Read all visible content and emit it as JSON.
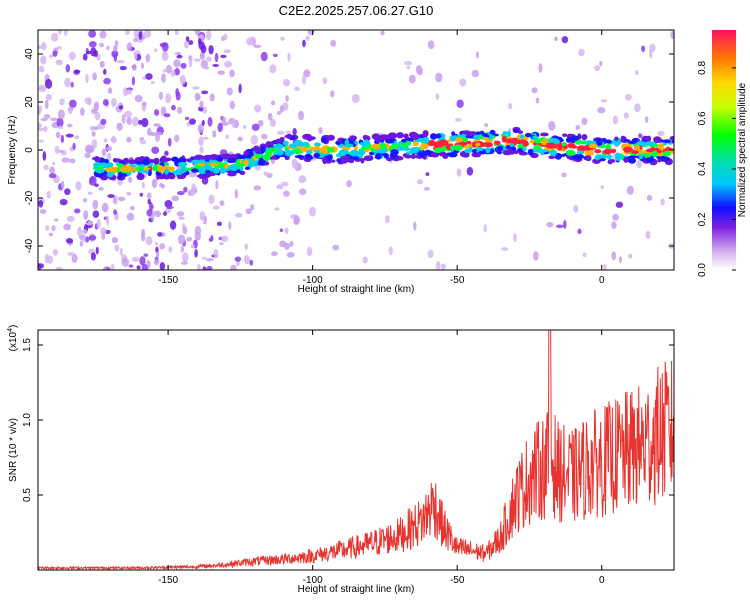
{
  "title": "C2E2.2025.257.06.27.G10",
  "chart_data": [
    {
      "type": "heatmap",
      "xlabel": "Height of straight line (km)",
      "ylabel": "Frequency (Hz)",
      "xlim": [
        -195,
        25
      ],
      "ylim": [
        -50,
        50
      ],
      "xticks": [
        -150,
        -100,
        -50,
        0
      ],
      "yticks": [
        -40,
        -20,
        0,
        20,
        40
      ],
      "grid": false,
      "ridge": {
        "description_x": [
          -190,
          -170,
          -140,
          -125,
          -110,
          -90,
          -60,
          -40,
          -30,
          -20,
          0,
          25
        ],
        "freq_hz": [
          -6,
          -8,
          -7,
          -6,
          1,
          0,
          2,
          3,
          4,
          2,
          0,
          0
        ]
      },
      "colorbar": {
        "label": "Normalized spectral amplitude",
        "range": [
          0.0,
          0.95
        ],
        "ticks": [
          "0.0",
          "0.2",
          "0.4",
          "0.6",
          "0.8"
        ]
      }
    },
    {
      "type": "line",
      "xlabel": "Height of straight line (km)",
      "ylabel": "SNR (10 * v/v)",
      "multiplier_label": "(x10",
      "multiplier_exp": "4",
      "xlim": [
        -195,
        25
      ],
      "ylim": [
        0,
        1.6
      ],
      "xticks": [
        -150,
        -100,
        -50,
        0
      ],
      "yticks": [
        "0.5",
        "1.0",
        "1.5"
      ],
      "series": [
        {
          "color": "#e8322e",
          "envelope_x": [
            -195,
            -160,
            -140,
            -130,
            -120,
            -110,
            -100,
            -90,
            -80,
            -70,
            -62,
            -58,
            -55,
            -50,
            -45,
            -40,
            -35,
            -30,
            -25,
            -20,
            -18,
            -15,
            -10,
            -5,
            0,
            5,
            10,
            15,
            20,
            25
          ],
          "envelope_y": [
            0.02,
            0.02,
            0.03,
            0.05,
            0.08,
            0.1,
            0.13,
            0.18,
            0.24,
            0.32,
            0.45,
            0.62,
            0.4,
            0.2,
            0.18,
            0.15,
            0.3,
            0.65,
            0.85,
            0.95,
            1.05,
            0.9,
            0.85,
            0.95,
            1.0,
            1.05,
            1.1,
            1.15,
            1.25,
            1.3
          ]
        }
      ]
    }
  ]
}
